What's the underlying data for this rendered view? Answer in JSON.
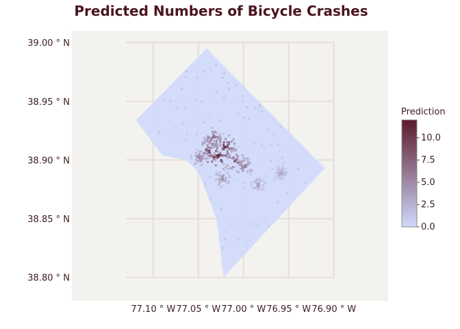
{
  "chart_data": {
    "type": "map",
    "title": "Predicted Numbers of Bicycle Crashes",
    "xlabel": "",
    "ylabel": "",
    "x_ticks": [
      {
        "value": -77.1,
        "label": "77.10 ° W"
      },
      {
        "value": -77.05,
        "label": "77.05 ° W"
      },
      {
        "value": -77.0,
        "label": "77.00 ° W"
      },
      {
        "value": -76.95,
        "label": "76.95 ° W"
      },
      {
        "value": -76.9,
        "label": "76.90 ° W"
      }
    ],
    "y_ticks": [
      {
        "value": 39.0,
        "label": "39.00 ° N"
      },
      {
        "value": 38.95,
        "label": "38.95 ° N"
      },
      {
        "value": 38.9,
        "label": "38.90 ° N"
      },
      {
        "value": 38.85,
        "label": "38.85 ° N"
      },
      {
        "value": 38.8,
        "label": "38.80 ° N"
      }
    ],
    "xlim": [
      -77.19,
      -76.84
    ],
    "ylim": [
      38.78,
      39.01
    ],
    "grid": true,
    "region_outline": [
      [
        -77.119,
        38.934
      ],
      [
        -77.041,
        38.995
      ],
      [
        -76.91,
        38.893
      ],
      [
        -77.009,
        38.811
      ],
      [
        -77.022,
        38.8
      ],
      [
        -77.03,
        38.85
      ],
      [
        -77.04,
        38.87
      ],
      [
        -77.05,
        38.89
      ],
      [
        -77.064,
        38.9
      ],
      [
        -77.09,
        38.904
      ]
    ],
    "hotspots": [
      {
        "lon": -77.03,
        "lat": 38.905,
        "value": 12.0
      },
      {
        "lon": -77.022,
        "lat": 38.912,
        "value": 10.5
      },
      {
        "lon": -77.04,
        "lat": 38.908,
        "value": 9.0
      },
      {
        "lon": -77.01,
        "lat": 38.9,
        "value": 8.5
      },
      {
        "lon": -77.035,
        "lat": 38.92,
        "value": 7.5
      },
      {
        "lon": -77.0,
        "lat": 38.895,
        "value": 6.0
      },
      {
        "lon": -77.05,
        "lat": 38.903,
        "value": 5.5
      },
      {
        "lon": -77.025,
        "lat": 38.885,
        "value": 5.0
      },
      {
        "lon": -76.985,
        "lat": 38.88,
        "value": 4.0
      },
      {
        "lon": -76.96,
        "lat": 38.89,
        "value": 3.5
      }
    ],
    "colorbar": {
      "title": "Prediction",
      "min": 0,
      "max": 12,
      "ticks": [
        {
          "value": 0.0,
          "label": "0.0"
        },
        {
          "value": 2.5,
          "label": "2.5"
        },
        {
          "value": 5.0,
          "label": "5.0"
        },
        {
          "value": 7.5,
          "label": "7.5"
        },
        {
          "value": 10.0,
          "label": "10.0"
        }
      ],
      "color_low": "#cfdafc",
      "color_high": "#5b1a2c"
    },
    "legend_position": "right"
  },
  "colors": {
    "plot_background": "#f4f2ef",
    "grid": "#e3dfd9",
    "title": "#4a1520",
    "text": "#3b1c24"
  }
}
